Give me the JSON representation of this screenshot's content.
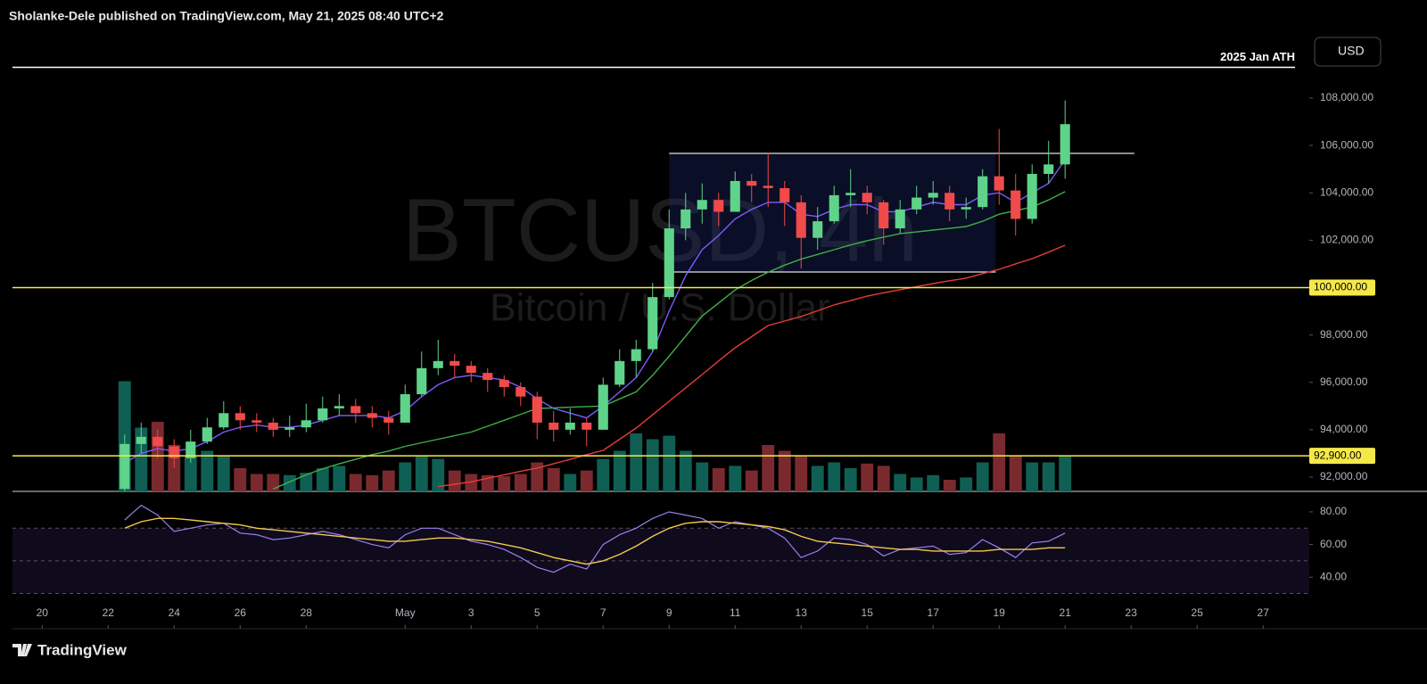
{
  "header": {
    "text": "Sholanke-Dele published on TradingView.com, May 21, 2025 08:40 UTC+2"
  },
  "toolbar": {
    "currency": "USD"
  },
  "footer": {
    "brand": "TradingView"
  },
  "chart_data": {
    "type": "candlestick",
    "watermark": {
      "symbol": "BTCUSD, 4h",
      "description": "Bitcoin / U.S. Dollar"
    },
    "x": [
      2.5,
      3,
      3.5,
      4,
      4.5,
      5,
      5.5,
      6,
      6.5,
      7,
      7.5,
      8,
      8.5,
      9,
      9.5,
      10,
      10.5,
      11,
      11.5,
      12,
      12.5,
      13,
      13.5,
      14,
      14.5,
      15,
      15.5,
      16,
      16.5,
      17,
      17.5,
      18,
      18.5,
      19,
      19.5,
      20,
      20.5,
      21,
      21.5,
      22,
      22.5,
      23,
      23.5,
      24,
      24.5,
      25,
      25.5,
      26,
      26.5,
      27,
      27.5,
      28,
      28.5,
      29,
      29.5,
      30,
      30.5,
      31
    ],
    "xlim": [
      -0.9,
      38.4
    ],
    "xticks": [
      {
        "value": 0,
        "label": "20"
      },
      {
        "value": 2,
        "label": "22"
      },
      {
        "value": 4,
        "label": "24"
      },
      {
        "value": 6,
        "label": "26"
      },
      {
        "value": 8,
        "label": "28"
      },
      {
        "value": 11,
        "label": "May"
      },
      {
        "value": 13,
        "label": "3"
      },
      {
        "value": 15,
        "label": "5"
      },
      {
        "value": 17,
        "label": "7"
      },
      {
        "value": 19,
        "label": "9"
      },
      {
        "value": 21,
        "label": "11"
      },
      {
        "value": 23,
        "label": "13"
      },
      {
        "value": 25,
        "label": "15"
      },
      {
        "value": 27,
        "label": "17"
      },
      {
        "value": 29,
        "label": "19"
      },
      {
        "value": 31,
        "label": "21"
      },
      {
        "value": 33,
        "label": "23"
      },
      {
        "value": 35,
        "label": "25"
      },
      {
        "value": 37,
        "label": "27"
      }
    ],
    "open": [
      91500,
      93400,
      93700,
      93300,
      92800,
      93500,
      94100,
      94700,
      94400,
      94300,
      94000,
      94100,
      94400,
      94900,
      95000,
      94700,
      94500,
      94300,
      95500,
      96600,
      96900,
      96700,
      96400,
      96100,
      95800,
      95400,
      94300,
      94000,
      94300,
      94000,
      95900,
      96900,
      97400,
      99600,
      102500,
      103300,
      103700,
      103200,
      104500,
      104300,
      104200,
      103600,
      102100,
      102800,
      103900,
      104000,
      103600,
      102500,
      103300,
      103800,
      104000,
      103300,
      103400,
      104700,
      104100,
      102900,
      104800,
      105200
    ],
    "high": [
      93800,
      94300,
      94000,
      93600,
      94000,
      94500,
      95200,
      95000,
      94700,
      94500,
      94600,
      95100,
      95400,
      95500,
      95300,
      95000,
      94800,
      95900,
      97300,
      97800,
      97200,
      96900,
      96600,
      96300,
      96000,
      95600,
      94800,
      94900,
      94500,
      96200,
      97400,
      97800,
      100200,
      103300,
      104000,
      104400,
      104000,
      104900,
      104800,
      105700,
      104500,
      103900,
      103400,
      104300,
      105000,
      104300,
      103700,
      103700,
      104300,
      104500,
      104300,
      103800,
      105000,
      106700,
      104800,
      105200,
      106200,
      107900
    ],
    "low": [
      91400,
      93000,
      92800,
      92400,
      92600,
      93400,
      94000,
      94000,
      93900,
      93700,
      93700,
      93900,
      94300,
      94600,
      94300,
      94100,
      93800,
      94300,
      95400,
      96300,
      96200,
      96000,
      95600,
      95400,
      95000,
      93600,
      93500,
      93800,
      93300,
      94000,
      95800,
      96200,
      97300,
      99500,
      102000,
      102700,
      102600,
      103200,
      103600,
      103400,
      102600,
      100800,
      101600,
      102700,
      103400,
      103100,
      101800,
      102300,
      103100,
      103500,
      102800,
      102900,
      103300,
      103500,
      102200,
      102700,
      104400,
      104600
    ],
    "close": [
      93400,
      93700,
      93300,
      92800,
      93500,
      94100,
      94700,
      94400,
      94300,
      94000,
      94100,
      94400,
      94900,
      95000,
      94700,
      94500,
      94300,
      95500,
      96600,
      96900,
      96700,
      96400,
      96100,
      95800,
      95400,
      94300,
      94000,
      94300,
      94000,
      95900,
      96900,
      97400,
      99600,
      102500,
      103300,
      103700,
      103200,
      104500,
      104300,
      104200,
      103600,
      102100,
      102800,
      103900,
      104000,
      103600,
      102500,
      103300,
      103800,
      104000,
      103300,
      103400,
      104700,
      104100,
      102900,
      104800,
      105200,
      106900
    ],
    "up_color": "#5fd38a",
    "down_color": "#f04a4a",
    "ylim": [
      91398,
      110748
    ],
    "yticks": [
      {
        "value": 92000,
        "label": "92,000.00"
      },
      {
        "value": 94000,
        "label": "94,000.00"
      },
      {
        "value": 96000,
        "label": "96,000.00"
      },
      {
        "value": 98000,
        "label": "98,000.00"
      },
      {
        "value": 102000,
        "label": "102,000.00"
      },
      {
        "value": 104000,
        "label": "104,000.00"
      },
      {
        "value": 106000,
        "label": "106,000.00"
      },
      {
        "value": 108000,
        "label": "108,000.00"
      }
    ],
    "volume": {
      "values": [
        95,
        55,
        60,
        40,
        30,
        35,
        30,
        20,
        15,
        15,
        14,
        16,
        20,
        22,
        15,
        14,
        18,
        25,
        30,
        28,
        18,
        15,
        14,
        13,
        15,
        25,
        20,
        15,
        18,
        28,
        35,
        50,
        45,
        48,
        35,
        25,
        20,
        22,
        18,
        40,
        35,
        30,
        22,
        25,
        20,
        24,
        22,
        15,
        12,
        14,
        10,
        12,
        25,
        50,
        30,
        25,
        25,
        30
      ],
      "ylim": [
        0,
        100
      ],
      "up_color": "#0f5f55",
      "down_color": "#7a2a2e"
    },
    "moving_averages": [
      {
        "color": "#7b5cff",
        "values": [
          92600,
          93000,
          93200,
          93100,
          93200,
          93500,
          93900,
          94100,
          94200,
          94100,
          94100,
          94200,
          94400,
          94600,
          94600,
          94600,
          94500,
          94800,
          95400,
          95900,
          96200,
          96300,
          96200,
          96100,
          95800,
          95300,
          94900,
          94700,
          94500,
          95000,
          95600,
          96200,
          97300,
          99000,
          100500,
          101600,
          102200,
          102900,
          103300,
          103600,
          103600,
          103100,
          103000,
          103300,
          103500,
          103500,
          103200,
          103200,
          103400,
          103600,
          103500,
          103500,
          103900,
          104000,
          103600,
          104000,
          104400,
          105400
        ]
      },
      {
        "color": "#3fae4a",
        "values": [
          null,
          null,
          null,
          null,
          null,
          null,
          null,
          null,
          null,
          91500,
          91800,
          92100,
          92350,
          92560,
          92750,
          92950,
          93100,
          93300,
          93450,
          93600,
          93750,
          93900,
          94150,
          94400,
          94650,
          94900,
          94920,
          94950,
          94980,
          95000,
          95300,
          95600,
          96300,
          97100,
          97950,
          98800,
          99350,
          99900,
          100300,
          100650,
          100950,
          101200,
          101400,
          101600,
          101800,
          101980,
          102130,
          102280,
          102350,
          102430,
          102500,
          102580,
          102800,
          103100,
          103250,
          103400,
          103700,
          104050
        ]
      },
      {
        "color": "#e63b3b",
        "values": [
          null,
          null,
          null,
          null,
          null,
          null,
          null,
          null,
          null,
          null,
          null,
          null,
          null,
          null,
          null,
          null,
          null,
          null,
          null,
          91600,
          91700,
          91800,
          91950,
          92100,
          92250,
          92380,
          92570,
          92750,
          92950,
          93130,
          93600,
          94070,
          94630,
          95200,
          95770,
          96330,
          96900,
          97460,
          97930,
          98400,
          98590,
          98780,
          99020,
          99270,
          99450,
          99640,
          99780,
          99910,
          100040,
          100170,
          100290,
          100400,
          100590,
          100770,
          101000,
          101220,
          101500,
          101790
        ]
      }
    ],
    "levels": [
      {
        "value": 109300,
        "label": "2025 Jan ATH",
        "color": "#ffffff"
      },
      {
        "value": 100000,
        "label": "100,000.00",
        "color": "#f5e94a"
      },
      {
        "value": 92900,
        "label": "92,900.00",
        "color": "#f5e94a"
      }
    ],
    "range_box": {
      "x": [
        19,
        28.9
      ],
      "y": [
        100660,
        105665
      ]
    },
    "breakout_line": {
      "x": [
        19,
        33.1
      ],
      "value": 105665
    },
    "rsi": {
      "values": [
        75,
        84,
        78,
        68,
        70,
        72,
        73,
        67,
        66,
        63,
        64,
        66,
        68,
        66,
        63,
        60,
        58,
        66,
        70,
        70,
        66,
        62,
        60,
        57,
        52,
        46,
        43,
        48,
        45,
        60,
        66,
        70,
        76,
        80,
        78,
        76,
        70,
        74,
        72,
        70,
        64,
        52,
        56,
        64,
        63,
        60,
        53,
        57,
        58,
        59,
        54,
        55,
        63,
        58,
        52,
        61,
        62,
        67
      ],
      "ma": [
        70,
        74,
        76,
        76,
        75,
        74,
        73,
        72,
        70,
        69,
        68,
        67,
        66,
        65,
        64,
        63,
        62,
        62,
        63,
        64,
        64,
        63,
        62,
        60,
        58,
        55,
        52,
        50,
        48,
        50,
        54,
        59,
        65,
        70,
        73,
        74,
        74,
        73,
        72,
        71,
        69,
        65,
        62,
        61,
        60,
        59,
        58,
        57,
        57,
        56,
        56,
        56,
        56,
        57,
        57,
        57,
        58,
        58
      ],
      "color": "#9b7ff0",
      "ma_color": "#f2c94c",
      "ylim": [
        21,
        92
      ],
      "yticks": [
        {
          "value": 80,
          "label": "80.00"
        },
        {
          "value": 60,
          "label": "60.00"
        },
        {
          "value": 40,
          "label": "40.00"
        }
      ],
      "bands": [
        30,
        50,
        70
      ]
    }
  }
}
